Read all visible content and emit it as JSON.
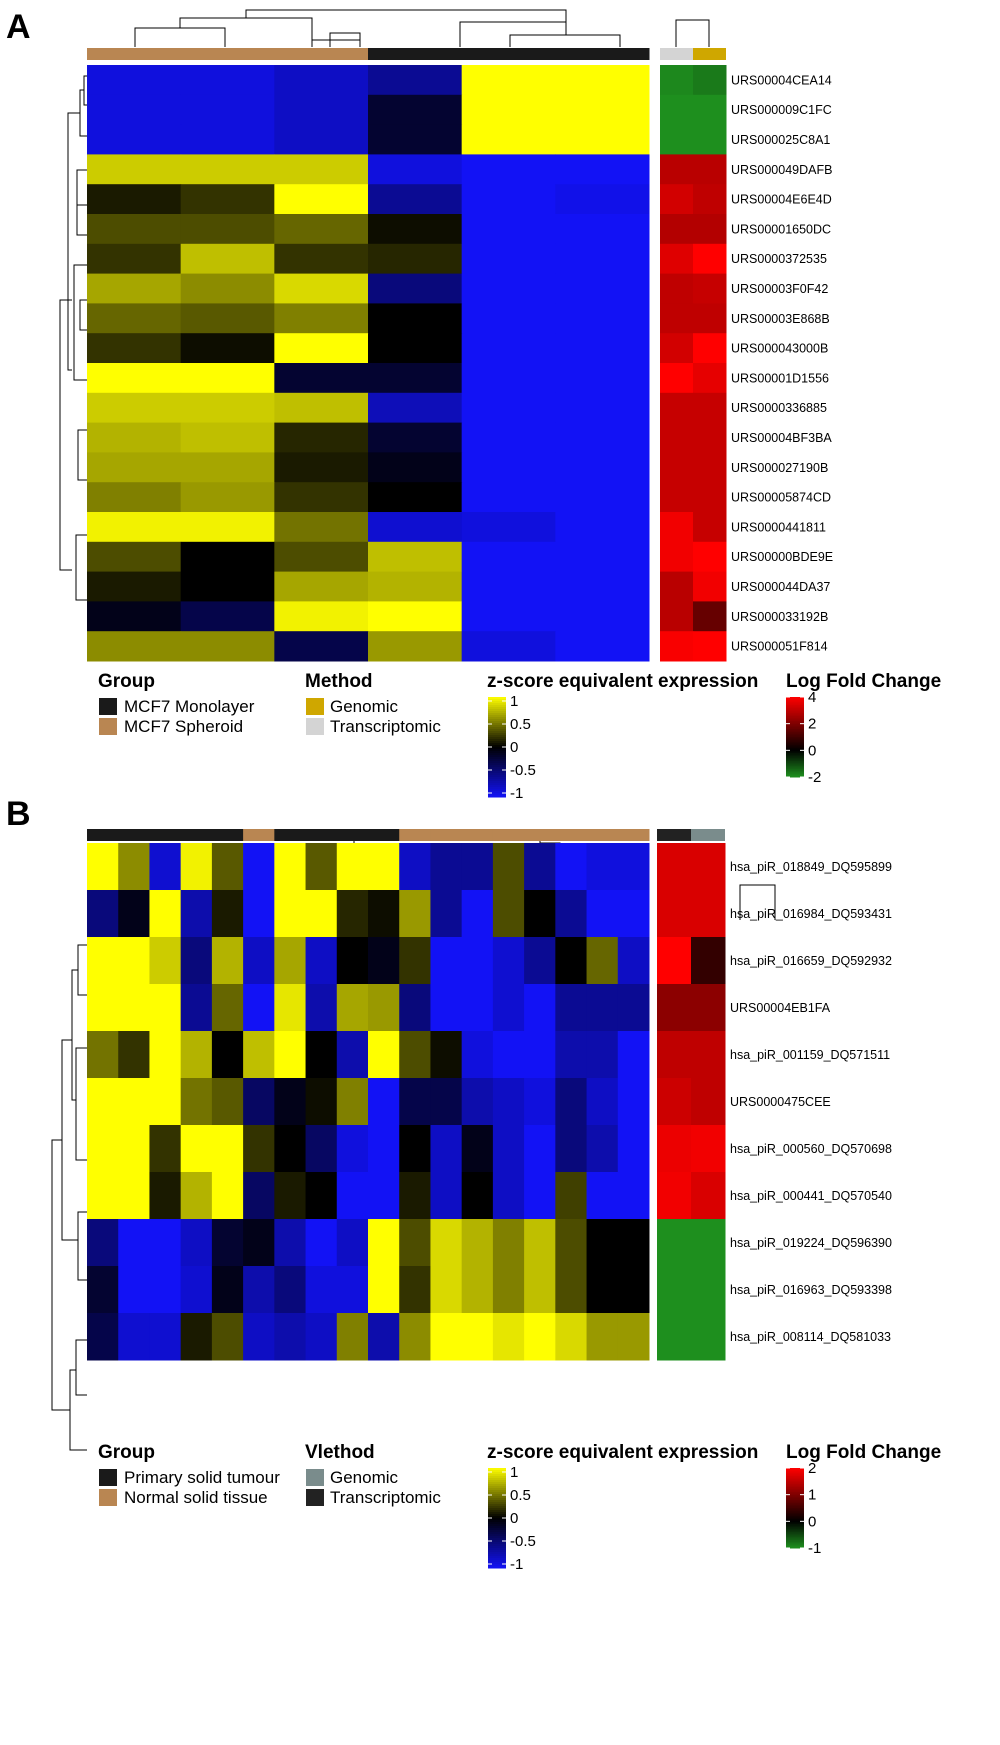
{
  "colors": {
    "heat_low": "#1212f5",
    "heat_mid": "#000000",
    "heat_high": "#ffff00",
    "lfc_low": "#1e8f1e",
    "lfc_mid": "#000000",
    "lfc_high": "#ff0000",
    "group_primary": "#1a1a1a",
    "group_normal": "#b98652",
    "group_monolayer": "#1a1a1a",
    "group_spheroid": "#b98652",
    "method_genomic_A": "#cfa700",
    "method_transcriptomic_A": "#d4d4d4",
    "method_genomic_B": "#7a8c8c",
    "method_transcriptomic_B": "#222222"
  },
  "chart_data": [
    {
      "panel": "A",
      "type": "heatmap",
      "columns_group": [
        "MCF7 Spheroid",
        "MCF7 Spheroid",
        "MCF7 Spheroid",
        "MCF7 Monolayer",
        "MCF7 Monolayer",
        "MCF7 Monolayer"
      ],
      "rows": [
        "URS00004CEA14",
        "URS000009C1FC",
        "URS000025C8A1",
        "URS000049DAFB",
        "URS00004E6E4D",
        "URS00001650DC",
        "URS0000372535",
        "URS00003F0F42",
        "URS00003E868B",
        "URS000043000B",
        "URS00001D1556",
        "URS0000336885",
        "URS00004BF3BA",
        "URS000027190B",
        "URS00005874CD",
        "URS0000441811",
        "URS00000BDE9E",
        "URS000044DA37",
        "URS000033192B",
        "URS000051F814"
      ],
      "values": [
        [
          -0.9,
          -0.9,
          -0.8,
          -0.6,
          1,
          1
        ],
        [
          -0.9,
          -0.9,
          -0.8,
          -0.2,
          1,
          1
        ],
        [
          -0.9,
          -0.9,
          -0.8,
          -0.2,
          1,
          1
        ],
        [
          0.8,
          0.8,
          0.8,
          -0.9,
          -1,
          -1
        ],
        [
          0.1,
          0.2,
          1,
          -0.6,
          -1,
          -0.95
        ],
        [
          0.3,
          0.3,
          0.4,
          0.05,
          -1,
          -1
        ],
        [
          0.2,
          0.75,
          0.2,
          0.15,
          -1,
          -1
        ],
        [
          0.65,
          0.55,
          0.85,
          -0.5,
          -1,
          -1
        ],
        [
          0.4,
          0.35,
          0.5,
          0,
          -1,
          -1
        ],
        [
          0.2,
          0.05,
          1,
          0,
          -1,
          -1
        ],
        [
          1,
          1,
          -0.2,
          -0.2,
          -1,
          -1
        ],
        [
          0.8,
          0.8,
          0.75,
          -0.75,
          -1,
          -1
        ],
        [
          0.7,
          0.75,
          0.15,
          -0.2,
          -1,
          -1
        ],
        [
          0.65,
          0.65,
          0.1,
          -0.1,
          -1,
          -1
        ],
        [
          0.5,
          0.6,
          0.2,
          0,
          -1,
          -1
        ],
        [
          0.95,
          0.95,
          0.45,
          -0.85,
          -0.9,
          -1
        ],
        [
          0.3,
          0,
          0.3,
          0.75,
          -1,
          -1
        ],
        [
          0.1,
          0,
          0.65,
          0.7,
          -1,
          -1
        ],
        [
          -0.1,
          -0.3,
          0.95,
          1,
          -1,
          -1
        ],
        [
          0.55,
          0.55,
          -0.3,
          0.6,
          -0.9,
          -1
        ]
      ],
      "logfc_columns": [
        "Transcriptomic",
        "Genomic"
      ],
      "logfc": [
        [
          -1.9,
          -1.7
        ],
        [
          -2,
          -2
        ],
        [
          -2,
          -2
        ],
        [
          2.9,
          2.9
        ],
        [
          3.3,
          3.0
        ],
        [
          2.8,
          2.8
        ],
        [
          3.5,
          4
        ],
        [
          3.0,
          3.1
        ],
        [
          3.0,
          3.0
        ],
        [
          3.3,
          4
        ],
        [
          4,
          3.6
        ],
        [
          3.1,
          3.1
        ],
        [
          3.1,
          3.1
        ],
        [
          3.1,
          3.1
        ],
        [
          3.1,
          3.1
        ],
        [
          3.8,
          3.1
        ],
        [
          3.8,
          4
        ],
        [
          2.9,
          3.8
        ],
        [
          2.9,
          1.6
        ],
        [
          3.9,
          4
        ]
      ],
      "legend": {
        "group_title": "Group",
        "group_items": [
          "MCF7 Monolayer",
          "MCF7 Spheroid"
        ],
        "method_title": "Method",
        "method_items": [
          "Genomic",
          "Transcriptomic"
        ],
        "zscore_title": "z-score equivalent expression",
        "zscore_ticks": [
          "1",
          "0.5",
          "0",
          "-0.5",
          "-1"
        ],
        "zscore_range": [
          -1,
          1
        ],
        "lfc_title": "Log Fold Change",
        "lfc_ticks": [
          "4",
          "2",
          "0",
          "-2"
        ],
        "lfc_range": [
          -2,
          4
        ]
      }
    },
    {
      "panel": "B",
      "type": "heatmap",
      "columns_group": [
        "Primary solid tumour",
        "Primary solid tumour",
        "Primary solid tumour",
        "Primary solid tumour",
        "Primary solid tumour",
        "Normal solid tissue",
        "Primary solid tumour",
        "Primary solid tumour",
        "Primary solid tumour",
        "Primary solid tumour",
        "Normal solid tissue",
        "Normal solid tissue",
        "Normal solid tissue",
        "Normal solid tissue",
        "Normal solid tissue",
        "Normal solid tissue",
        "Normal solid tissue",
        "Normal solid tissue"
      ],
      "rows": [
        "hsa_piR_018849_DQ595899",
        "hsa_piR_016984_DQ593431",
        "hsa_piR_016659_DQ592932",
        "URS00004EB1FA",
        "hsa_piR_001159_DQ571511",
        "URS0000475CEE",
        "hsa_piR_000560_DQ570698",
        "hsa_piR_000441_DQ570540",
        "hsa_piR_019224_DQ596390",
        "hsa_piR_016963_DQ593398",
        "hsa_piR_008114_DQ581033"
      ],
      "values": [
        [
          1,
          0.55,
          -0.85,
          0.95,
          0.35,
          -1,
          1,
          0.35,
          1,
          1,
          -0.8,
          -0.6,
          -0.6,
          0.3,
          -0.6,
          -1,
          -0.9,
          -0.9
        ],
        [
          -0.5,
          -0.1,
          1,
          -0.7,
          0.1,
          -1,
          1,
          1,
          0.15,
          0.05,
          0.6,
          -0.6,
          -1,
          0.3,
          0,
          -0.6,
          -1,
          -1
        ],
        [
          1,
          1,
          0.8,
          -0.5,
          0.7,
          -0.8,
          0.65,
          -0.8,
          0,
          -0.1,
          0.2,
          -1,
          -1,
          -0.85,
          -0.6,
          0,
          0.4,
          -0.8
        ],
        [
          1,
          1,
          1,
          -0.6,
          0.4,
          -1,
          0.9,
          -0.7,
          0.65,
          0.6,
          -0.5,
          -1,
          -1,
          -0.85,
          -1,
          -0.6,
          -0.6,
          -0.6
        ],
        [
          0.45,
          0.2,
          1,
          0.7,
          0,
          0.75,
          1,
          0,
          -0.7,
          1,
          0.3,
          0.05,
          -0.9,
          -1,
          -1,
          -0.7,
          -0.7,
          -1
        ],
        [
          1,
          1,
          1,
          0.45,
          0.35,
          -0.4,
          -0.1,
          0.05,
          0.5,
          -1,
          -0.3,
          -0.3,
          -0.7,
          -0.8,
          -0.9,
          -0.5,
          -0.8,
          -1
        ],
        [
          1,
          1,
          0.2,
          1,
          1,
          0.2,
          0,
          -0.4,
          -0.9,
          -1,
          0,
          -0.8,
          -0.1,
          -0.8,
          -1,
          -0.5,
          -0.7,
          -1
        ],
        [
          1,
          1,
          0.1,
          0.7,
          1,
          -0.4,
          0.1,
          0,
          -1,
          -1,
          0.1,
          -0.8,
          0,
          -0.8,
          -1,
          0.25,
          -1,
          -1
        ],
        [
          -0.5,
          -1,
          -1,
          -0.8,
          -0.2,
          -0.1,
          -0.7,
          -1,
          -0.8,
          1,
          0.3,
          0.85,
          0.7,
          0.5,
          0.75,
          0.3,
          0,
          0
        ],
        [
          -0.2,
          -1,
          -1,
          -0.85,
          -0.1,
          -0.7,
          -0.5,
          -0.9,
          -0.9,
          1,
          0.2,
          0.85,
          0.7,
          0.5,
          0.75,
          0.3,
          0,
          0
        ],
        [
          -0.3,
          -0.85,
          -0.85,
          0.1,
          0.3,
          -0.8,
          -0.7,
          -0.8,
          0.5,
          -0.7,
          0.55,
          1,
          1,
          0.9,
          1,
          0.85,
          0.6,
          0.6
        ]
      ],
      "logfc_columns": [
        "Transcriptomic",
        "Genomic"
      ],
      "logfc": [
        [
          1.7,
          1.7
        ],
        [
          1.7,
          1.7
        ],
        [
          2,
          0.4
        ],
        [
          1.1,
          1.1
        ],
        [
          1.5,
          1.5
        ],
        [
          1.6,
          1.5
        ],
        [
          1.85,
          1.9
        ],
        [
          1.9,
          1.7
        ],
        [
          -1,
          -1
        ],
        [
          -1,
          -1
        ],
        [
          -1,
          -1
        ]
      ],
      "legend": {
        "group_title": "Group",
        "group_items": [
          "Primary solid tumour",
          "Normal solid tissue"
        ],
        "method_title": "Vlethod",
        "method_items": [
          "Genomic",
          "Transcriptomic"
        ],
        "zscore_title": "z-score equivalent expression",
        "zscore_ticks": [
          "1",
          "0.5",
          "0",
          "-0.5",
          "-1"
        ],
        "zscore_range": [
          -1,
          1
        ],
        "lfc_title": "Log Fold Change",
        "lfc_ticks": [
          "2",
          "1",
          "0",
          "-1"
        ],
        "lfc_range": [
          -1,
          2
        ]
      }
    }
  ]
}
